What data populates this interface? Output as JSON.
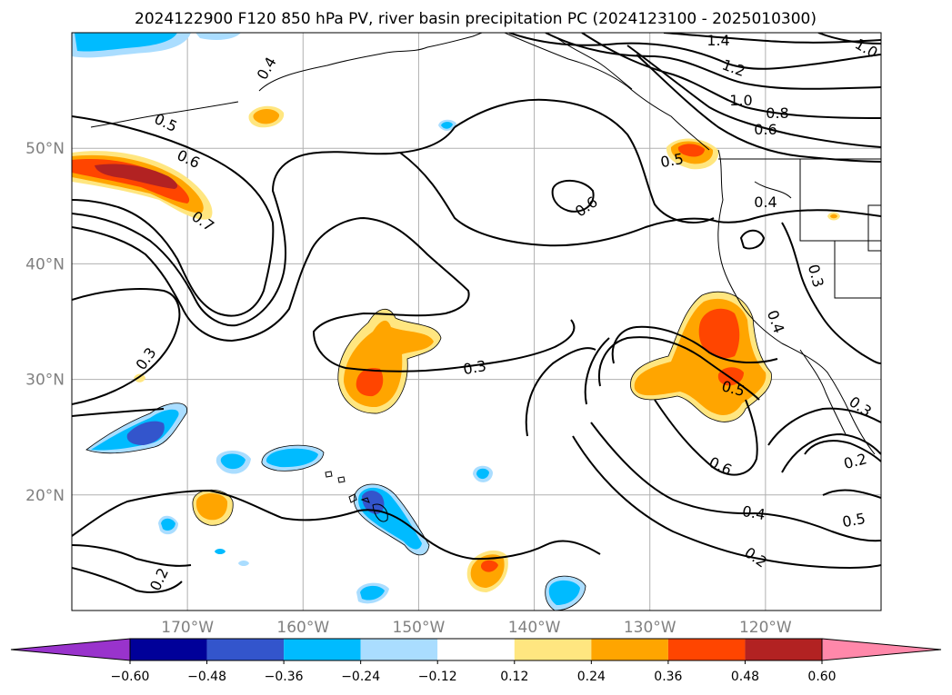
{
  "title": "2024122900 F120 850 hPa PV, river basin precipitation PC (2024123100 - 2025010300)",
  "map": {
    "lon_range": [
      -180,
      -110
    ],
    "lat_range": [
      10,
      60
    ],
    "lat_ticks": [
      {
        "value": 20,
        "label": "20°N"
      },
      {
        "value": 30,
        "label": "30°N"
      },
      {
        "value": 40,
        "label": "40°N"
      },
      {
        "value": 50,
        "label": "50°N"
      }
    ],
    "lon_ticks": [
      {
        "value": -170,
        "label": "170°W"
      },
      {
        "value": -160,
        "label": "160°W"
      },
      {
        "value": -150,
        "label": "150°W"
      },
      {
        "value": -140,
        "label": "140°W"
      },
      {
        "value": -130,
        "label": "130°W"
      },
      {
        "value": -120,
        "label": "120°W"
      }
    ],
    "pv_contour_labels": [
      "1.4",
      "1.2",
      "1.0",
      "1.0",
      "0.8",
      "0.6",
      "0.5",
      "0.6",
      "0.7",
      "0.4",
      "0.6",
      "0.5",
      "0.4",
      "0.3",
      "0.3",
      "0.4",
      "0.3",
      "0.5",
      "0.6",
      "0.4",
      "0.2",
      "0.3",
      "0.2",
      "0.5",
      "0.2"
    ]
  },
  "colorbar": {
    "ticks": [
      "−0.60",
      "−0.48",
      "−0.36",
      "−0.24",
      "−0.12",
      "0.12",
      "0.24",
      "0.36",
      "0.48",
      "0.60"
    ],
    "colors": [
      "#9933cc",
      "#000099",
      "#3355cc",
      "#00bbff",
      "#aaddff",
      "#ffffff",
      "#ffe680",
      "#ffa500",
      "#ff4500",
      "#b22222",
      "#ff88aa"
    ]
  }
}
